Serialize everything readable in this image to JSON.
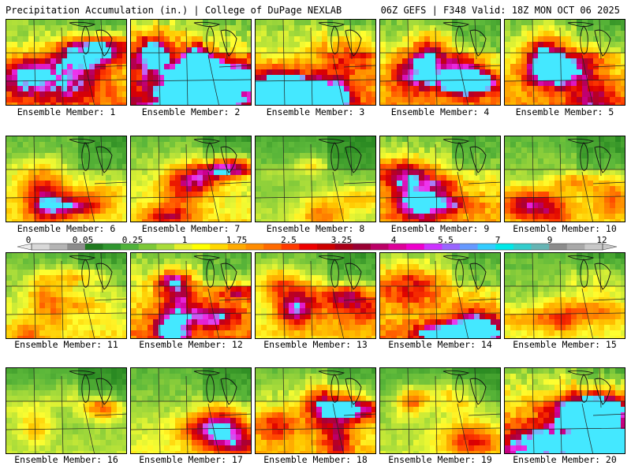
{
  "header": {
    "title": "Precipitation Accumulation (in.) | College of DuPage NEXLAB",
    "valid": "06Z GEFS | F348 Valid: 18Z MON OCT 06 2025"
  },
  "legend": {
    "tick_labels": [
      "0",
      "0.05",
      "0.25",
      "1",
      "1.75",
      "2.5",
      "3.25",
      "4",
      "5.5",
      "7",
      "9",
      "12"
    ],
    "colors": [
      "#d8d8d8",
      "#b4b4b4",
      "#8c8c8c",
      "#1f7a1f",
      "#2f962f",
      "#4fb23a",
      "#7cc838",
      "#a8dc3a",
      "#e6f02a",
      "#ffff00",
      "#ffd700",
      "#ffaa00",
      "#ff8c00",
      "#ff6a00",
      "#ff3a00",
      "#ee0000",
      "#cc0000",
      "#aa0018",
      "#990033",
      "#bb0066",
      "#dd0099",
      "#ee00cc",
      "#cc33ff",
      "#9966ff",
      "#6699ff",
      "#33ccff",
      "#00e8e8",
      "#33cccc",
      "#66b4b4",
      "#8c8c8c",
      "#a8a8a8",
      "#c8c8c8"
    ]
  },
  "members": [
    {
      "label": "Ensemble Member: 1",
      "intensity": 1.05
    },
    {
      "label": "Ensemble Member: 2",
      "intensity": 1.45
    },
    {
      "label": "Ensemble Member: 3",
      "intensity": 1.1
    },
    {
      "label": "Ensemble Member: 4",
      "intensity": 1.0
    },
    {
      "label": "Ensemble Member: 5",
      "intensity": 1.0
    },
    {
      "label": "Ensemble Member: 6",
      "intensity": 0.75
    },
    {
      "label": "Ensemble Member: 7",
      "intensity": 0.8
    },
    {
      "label": "Ensemble Member: 8",
      "intensity": 0.55
    },
    {
      "label": "Ensemble Member: 9",
      "intensity": 1.0
    },
    {
      "label": "Ensemble Member: 10",
      "intensity": 0.7
    },
    {
      "label": "Ensemble Member: 11",
      "intensity": 0.8
    },
    {
      "label": "Ensemble Member: 12",
      "intensity": 1.1
    },
    {
      "label": "Ensemble Member: 13",
      "intensity": 0.8
    },
    {
      "label": "Ensemble Member: 14",
      "intensity": 1.05
    },
    {
      "label": "Ensemble Member: 15",
      "intensity": 0.7
    },
    {
      "label": "Ensemble Member: 16",
      "intensity": 0.55
    },
    {
      "label": "Ensemble Member: 17",
      "intensity": 0.7
    },
    {
      "label": "Ensemble Member: 18",
      "intensity": 0.9
    },
    {
      "label": "Ensemble Member: 19",
      "intensity": 0.6
    },
    {
      "label": "Ensemble Member: 20",
      "intensity": 1.25
    }
  ]
}
